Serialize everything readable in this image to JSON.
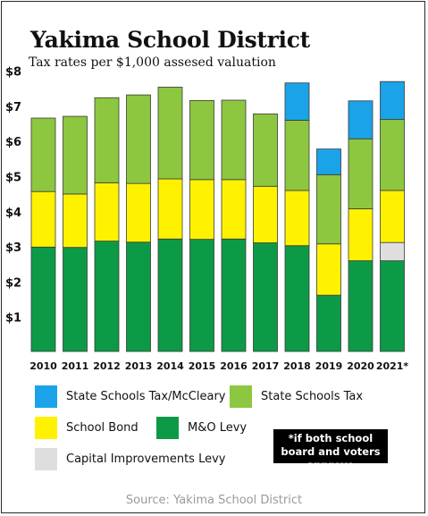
{
  "title": "Yakima School District",
  "subtitle": "Tax rates per $1,000 assesed valuation",
  "source": "Source: Yakima School District",
  "note": "*if both school board and voters approve",
  "legend": [
    {
      "label": "State Schools Tax/McCleary",
      "color": "#1aa3e8"
    },
    {
      "label": "State Schools Tax",
      "color": "#8dc63f"
    },
    {
      "label": "School Bond",
      "color": "#fff200"
    },
    {
      "label": "M&O Levy",
      "color": "#0d9a47"
    },
    {
      "label": "Capital Improvements Levy",
      "color": "#dedede"
    }
  ],
  "chart_data": {
    "type": "bar",
    "stacked": true,
    "title": "Yakima School District",
    "subtitle": "Tax rates per $1,000 assesed valuation",
    "categories": [
      "2010",
      "2011",
      "2012",
      "2013",
      "2014",
      "2015",
      "2016",
      "2017",
      "2018",
      "2019",
      "2020",
      "2021*"
    ],
    "y_ticks": [
      "$1",
      "$2",
      "$3",
      "$4",
      "$5",
      "$6",
      "$7",
      "$8"
    ],
    "ylim": [
      0,
      8
    ],
    "grid": false,
    "legend_position": "bottom",
    "series": [
      {
        "name": "M&O Levy",
        "color": "#0d9a47",
        "values": [
          2.97,
          2.96,
          3.14,
          3.11,
          3.2,
          3.19,
          3.2,
          3.09,
          3.01,
          1.6,
          2.58,
          2.58
        ]
      },
      {
        "name": "Capital Improvements Levy",
        "color": "#dedede",
        "values": [
          0,
          0,
          0,
          0,
          0,
          0,
          0,
          0,
          0,
          0,
          0,
          0.52
        ]
      },
      {
        "name": "School Bond",
        "color": "#fff200",
        "values": [
          1.58,
          1.52,
          1.66,
          1.67,
          1.71,
          1.7,
          1.69,
          1.61,
          1.57,
          1.46,
          1.48,
          1.48
        ]
      },
      {
        "name": "State Schools Tax",
        "color": "#8dc63f",
        "values": [
          2.09,
          2.21,
          2.42,
          2.52,
          2.61,
          2.25,
          2.26,
          2.06,
          2.0,
          1.97,
          1.99,
          2.02
        ]
      },
      {
        "name": "State Schools Tax/McCleary",
        "color": "#1aa3e8",
        "values": [
          0,
          0,
          0,
          0,
          0,
          0,
          0,
          0,
          1.06,
          0.73,
          1.08,
          1.08
        ]
      }
    ]
  }
}
